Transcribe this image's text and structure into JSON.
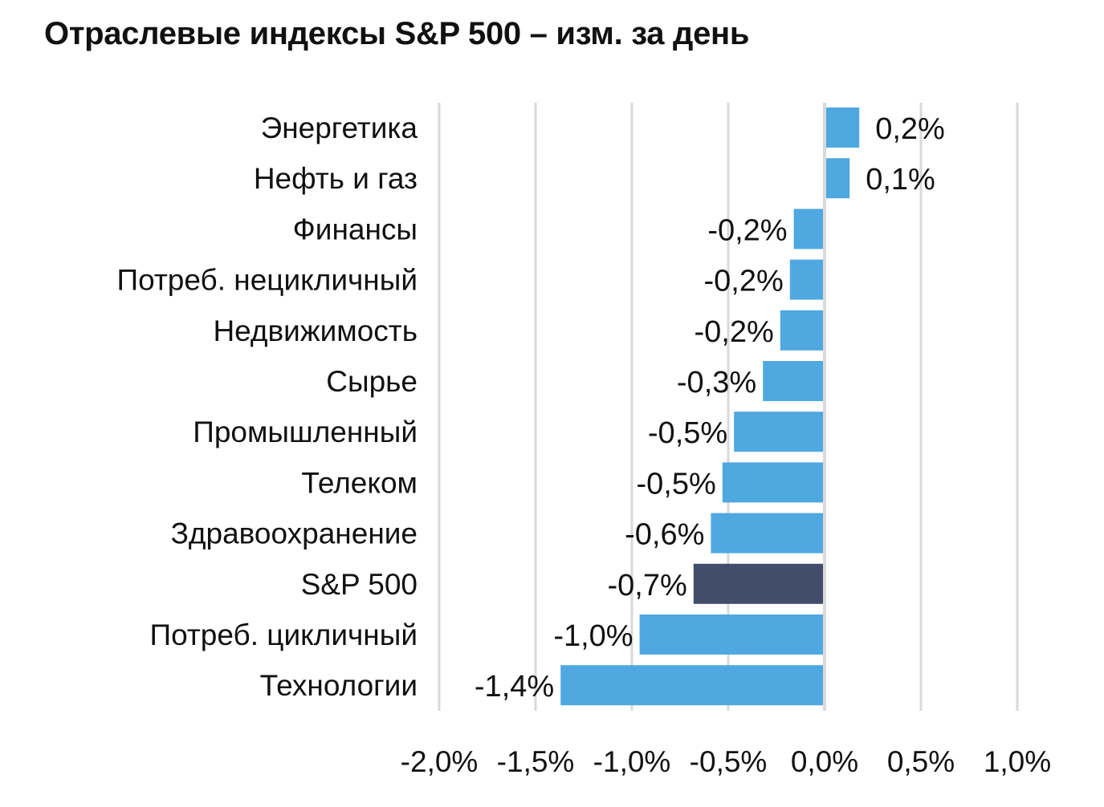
{
  "title": "Отраслевые индексы S&P 500 – изм. за день",
  "colors": {
    "bar": "#4fa8e0",
    "highlight": "#424c6b",
    "grid": "#d9d9d9",
    "text": "#111111"
  },
  "chart_data": {
    "type": "bar",
    "orientation": "horizontal",
    "title": "Отраслевые индексы S&P 500 – изм. за день",
    "categories": [
      "Энергетика",
      "Нефть и газ",
      "Финансы",
      "Потреб. нецикличный",
      "Недвижимость",
      "Сырье",
      "Промышленный",
      "Телеком",
      "Здравоохранение",
      "S&P 500",
      "Потреб. цикличный",
      "Технологии"
    ],
    "values": [
      0.18,
      0.13,
      -0.16,
      -0.18,
      -0.23,
      -0.32,
      -0.47,
      -0.53,
      -0.59,
      -0.68,
      -0.96,
      -1.37
    ],
    "data_labels": [
      "0,2%",
      "0,1%",
      "-0,2%",
      "-0,2%",
      "-0,2%",
      "-0,3%",
      "-0,5%",
      "-0,5%",
      "-0,6%",
      "-0,7%",
      "-1,0%",
      "-1,4%"
    ],
    "highlight": [
      "S&P 500"
    ],
    "xlim": [
      -2.0,
      1.0
    ],
    "xticks": [
      -2.0,
      -1.5,
      -1.0,
      -0.5,
      0.0,
      0.5,
      1.0
    ],
    "xtick_labels": [
      "-2,0%",
      "-1,5%",
      "-1,0%",
      "-0,5%",
      "0,0%",
      "0,5%",
      "1,0%"
    ],
    "grid": true,
    "legend": "none"
  }
}
